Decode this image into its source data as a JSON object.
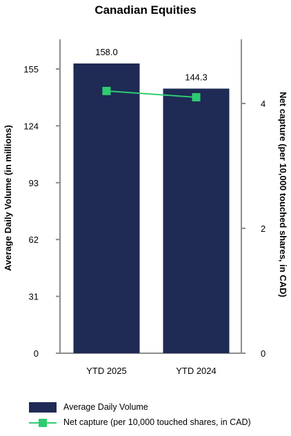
{
  "chart_data": {
    "type": "bar",
    "title": "Canadian Equities",
    "categories": [
      "YTD 2025",
      "YTD 2024"
    ],
    "series": [
      {
        "name": "Average Daily Volume",
        "type": "bar",
        "axis": "left",
        "values": [
          158.0,
          144.3
        ],
        "data_labels": [
          "158.0",
          "144.3"
        ],
        "color": "#1f2a55"
      },
      {
        "name": "Net capture (per 10,000 touched shares, in CAD)",
        "type": "line",
        "axis": "right",
        "values": [
          4.2,
          4.1
        ],
        "color": "#2ecc71"
      }
    ],
    "ylabel": "Average Daily Volume (in millions)",
    "y2label": "Net capture (per 10,000 touched shares, in CAD)",
    "ylim": [
      0,
      155
    ],
    "yticks": [
      "0",
      "31",
      "62",
      "93",
      "124",
      "155"
    ],
    "y2lim": [
      0,
      4
    ],
    "y2ticks": [
      "0",
      "2",
      "4"
    ],
    "grid": false,
    "legend_position": "bottom"
  }
}
